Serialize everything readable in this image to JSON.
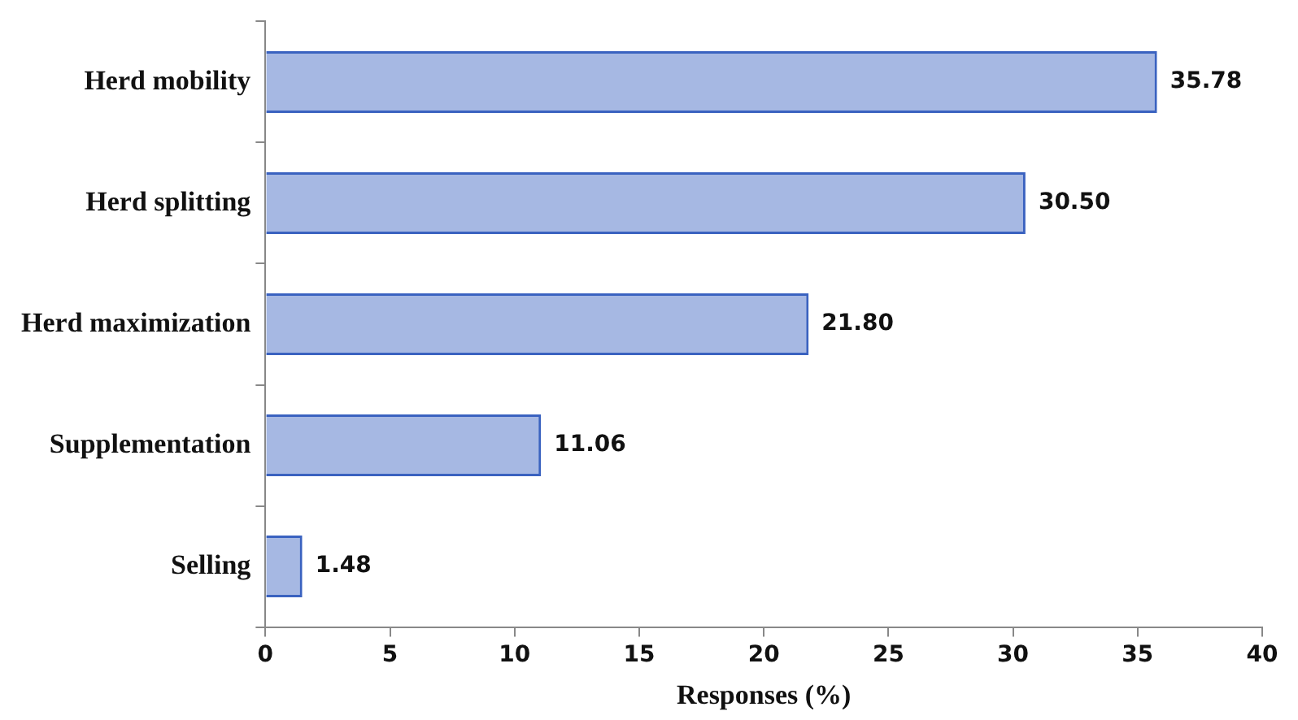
{
  "chart_data": {
    "type": "bar",
    "orientation": "horizontal",
    "xlabel": "Responses (%)",
    "categories": [
      "Herd mobility",
      "Herd splitting",
      "Herd maximization",
      "Supplementation",
      "Selling"
    ],
    "values": [
      35.78,
      30.5,
      21.8,
      11.06,
      1.48
    ],
    "value_labels": [
      "35.78",
      "30.50",
      "21.80",
      "11.06",
      "1.48"
    ],
    "color": "#3a62c0",
    "xlim": [
      0,
      40
    ],
    "xticks": [
      0,
      5,
      10,
      15,
      20,
      25,
      30,
      35,
      40
    ],
    "legend": false
  }
}
